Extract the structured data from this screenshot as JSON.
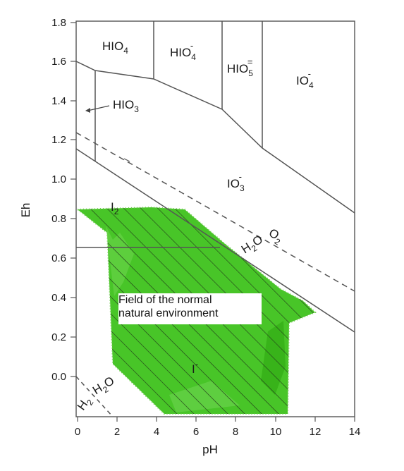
{
  "chart_data": {
    "type": "diagram",
    "xlabel": "pH",
    "ylabel": "Eh",
    "xlim": [
      0,
      14
    ],
    "ylim": [
      -0.2,
      1.8
    ],
    "x_ticks": [
      "0",
      "2",
      "4",
      "6",
      "8",
      "10",
      "12",
      "14"
    ],
    "y_ticks": [
      "0.0",
      "0.2",
      "0.4",
      "0.6",
      "0.8",
      "1.0",
      "1.2",
      "1.4",
      "1.6",
      "1.8"
    ],
    "species": [
      {
        "key": "hio4",
        "base": "HIO",
        "sub": "4",
        "sup": ""
      },
      {
        "key": "hio4_minus",
        "base": "HIO",
        "sub": "4",
        "sup": "-"
      },
      {
        "key": "hio5",
        "base": "HIO",
        "sub": "5",
        "sup": "="
      },
      {
        "key": "io4",
        "base": "IO",
        "sub": "4",
        "sup": "-"
      },
      {
        "key": "hio3",
        "base": "HIO",
        "sub": "3",
        "sup": ""
      },
      {
        "key": "io3",
        "base": "IO",
        "sub": "3",
        "sup": "-"
      },
      {
        "key": "i2",
        "base": "I",
        "sub": "2",
        "sup": ""
      },
      {
        "key": "i_minus",
        "base": "I",
        "sub": "",
        "sup": "-"
      }
    ],
    "water_line_labels": {
      "o2": {
        "base": "O",
        "sub": "2"
      },
      "h2o_upper": {
        "base": "H",
        "sub": "2",
        "tail": "O"
      },
      "h2o_lower": {
        "base": "H",
        "sub": "2",
        "tail": "O"
      },
      "h2": {
        "base": "H",
        "sub": "2"
      }
    },
    "natural_environment_label": [
      "Field of the normal",
      "natural environment"
    ],
    "colors": {
      "field_fill": "#3fc21d",
      "lines": "#555555",
      "hatch": "#1f3a14"
    }
  }
}
